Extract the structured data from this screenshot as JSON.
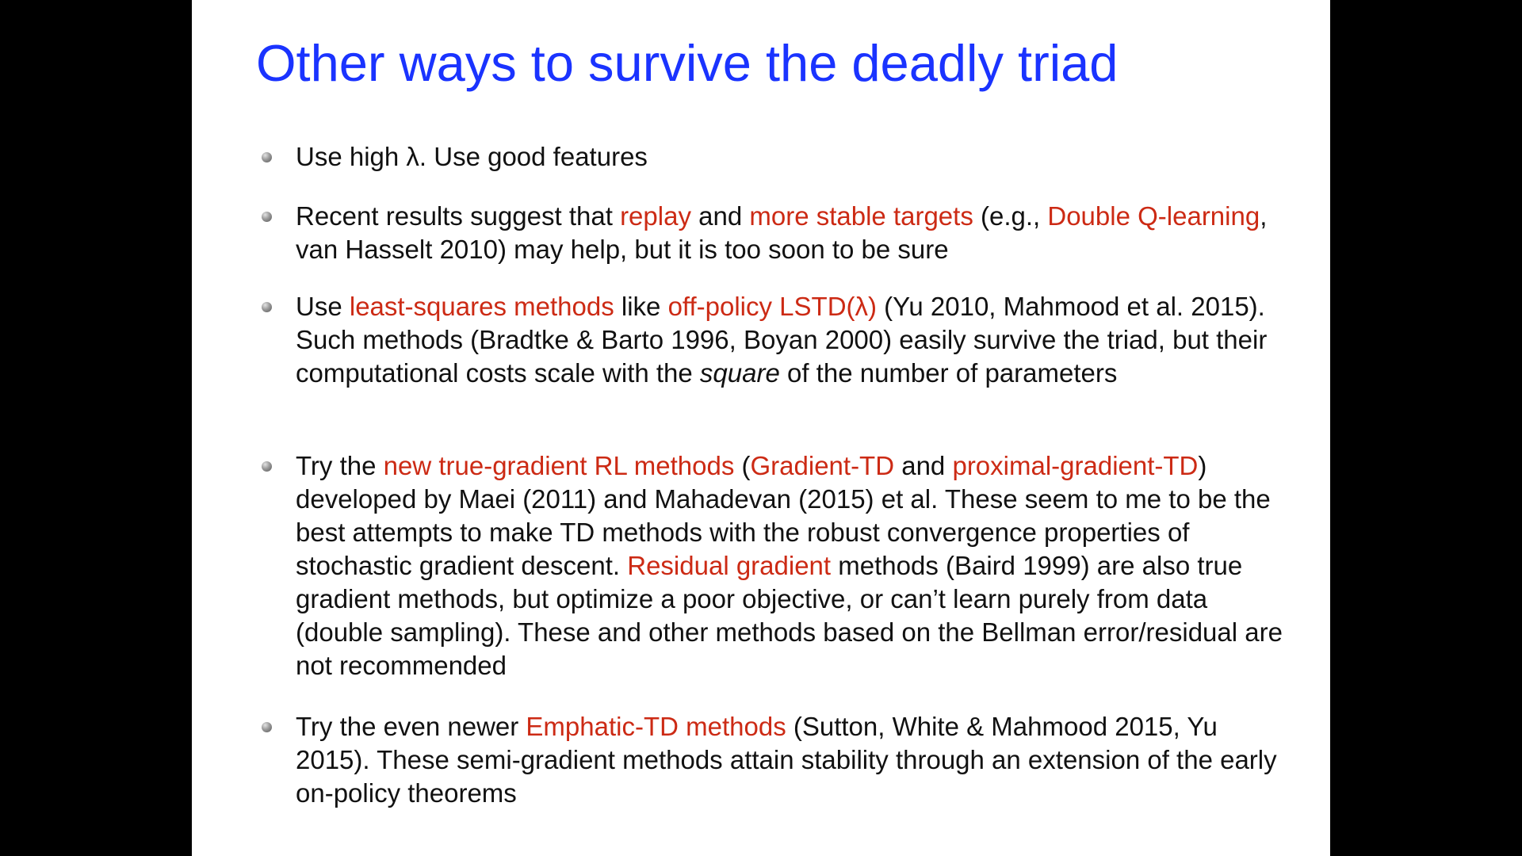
{
  "slide": {
    "title": "Other ways to survive the deadly triad",
    "accent_color": "#cc2a14",
    "title_color": "#1a33ff",
    "bullet_icon": "gray-sphere-bullet-icon",
    "bullets": [
      {
        "seg": [
          "Use high λ.  Use good features"
        ]
      },
      {
        "seg": [
          "Recent results suggest that ",
          "replay",
          " and ",
          "more stable targets",
          " (e.g., ",
          "Double Q-learning",
          ", van Hasselt 2010) may help, but it is too soon to be sure"
        ]
      },
      {
        "seg": [
          "Use ",
          "least-squares methods",
          " like ",
          "off-policy LSTD(λ)",
          " (Yu 2010, Mahmood et al. 2015). Such methods (Bradtke & Barto 1996, Boyan 2000) easily survive the triad, but their computational costs scale with the ",
          "square",
          " of the number of parameters"
        ]
      },
      {
        "seg": [
          "Try the ",
          "new true-gradient RL methods",
          " (",
          "Gradient-TD",
          " and ",
          "proximal-gradient-TD",
          ") developed by Maei (2011) and Mahadevan (2015) et al. These seem to me to be the best attempts to make TD methods with the robust convergence properties of stochastic gradient descent. ",
          "Residual gradient",
          " methods (Baird 1999) are also true gradient methods, but optimize a poor objective, or can’t learn purely from data (double sampling). These and other methods based on the Bellman error/residual are not recommended"
        ]
      },
      {
        "seg": [
          "Try the even newer ",
          "Emphatic-TD methods",
          " (Sutton, White & Mahmood 2015, Yu 2015). These semi-gradient methods attain stability through an extension of the early on-policy theorems"
        ]
      }
    ]
  }
}
